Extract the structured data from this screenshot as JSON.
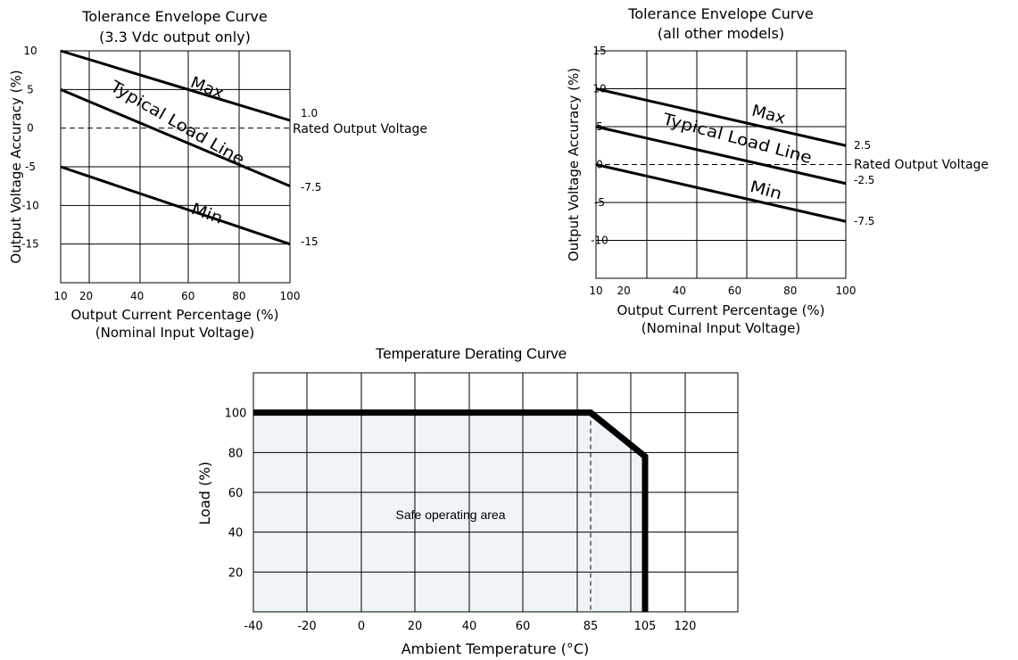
{
  "colors": {
    "line": "#000000",
    "grid": "#000000",
    "safe_fill": "#eef4f7"
  },
  "chart_data": [
    {
      "type": "line",
      "title": "Tolerance Envelope Curve",
      "subtitle": "(3.3 Vdc output only)",
      "xlabel": "Output Current Percentage (%)",
      "xlabel2": "(Nominal Input Voltage)",
      "ylabel": "Output Voltage Accuracy (%)",
      "xlim": [
        10,
        100
      ],
      "ylim": [
        -20,
        10
      ],
      "xticks": [
        10,
        20,
        40,
        60,
        80,
        100
      ],
      "yticks": [
        10,
        5,
        0,
        -5,
        -10,
        -15
      ],
      "grid": true,
      "series": [
        {
          "name": "Max",
          "x": [
            10,
            100
          ],
          "y": [
            10,
            1.0
          ]
        },
        {
          "name": "Typical Load Line",
          "x": [
            10,
            100
          ],
          "y": [
            5,
            -7.5
          ]
        },
        {
          "name": "Min",
          "x": [
            10,
            100
          ],
          "y": [
            -5,
            -15
          ]
        }
      ],
      "reference_line": {
        "y": 0,
        "label": "Rated Output Voltage"
      },
      "end_labels": [
        "1.0",
        "-7.5",
        "-15"
      ]
    },
    {
      "type": "line",
      "title": "Tolerance Envelope Curve",
      "subtitle": "(all other models)",
      "xlabel": "Output Current Percentage (%)",
      "xlabel2": "(Nominal Input Voltage)",
      "ylabel": "Output Voltage Accuracy (%)",
      "xlim": [
        10,
        100
      ],
      "ylim": [
        -15,
        15
      ],
      "xticks": [
        10,
        20,
        40,
        60,
        80,
        100
      ],
      "yticks": [
        15,
        10,
        5,
        0,
        -5,
        -10
      ],
      "grid": true,
      "series": [
        {
          "name": "Max",
          "x": [
            10,
            100
          ],
          "y": [
            10,
            2.5
          ]
        },
        {
          "name": "Typical Load Line",
          "x": [
            10,
            100
          ],
          "y": [
            5,
            -2.5
          ]
        },
        {
          "name": "Min",
          "x": [
            10,
            100
          ],
          "y": [
            0,
            -7.5
          ]
        }
      ],
      "reference_line": {
        "y": 0,
        "label": "Rated Output Voltage"
      },
      "end_labels": [
        "2.5",
        "-2.5",
        "-7.5"
      ]
    },
    {
      "type": "area",
      "title": "Temperature Derating Curve",
      "xlabel": "Ambient Temperature (°C)",
      "ylabel": "Load (%)",
      "xlim": [
        -40,
        140
      ],
      "ylim": [
        0,
        120
      ],
      "xticks": [
        -40,
        -20,
        0,
        20,
        40,
        60,
        85,
        105,
        120
      ],
      "yticks": [
        100,
        80,
        60,
        40,
        20
      ],
      "grid": true,
      "series": [
        {
          "name": "",
          "x": [
            -40,
            85,
            105,
            105
          ],
          "y": [
            100,
            100,
            78,
            0
          ]
        }
      ],
      "vline": {
        "x": 85
      },
      "annotation": "Safe operating area"
    }
  ]
}
